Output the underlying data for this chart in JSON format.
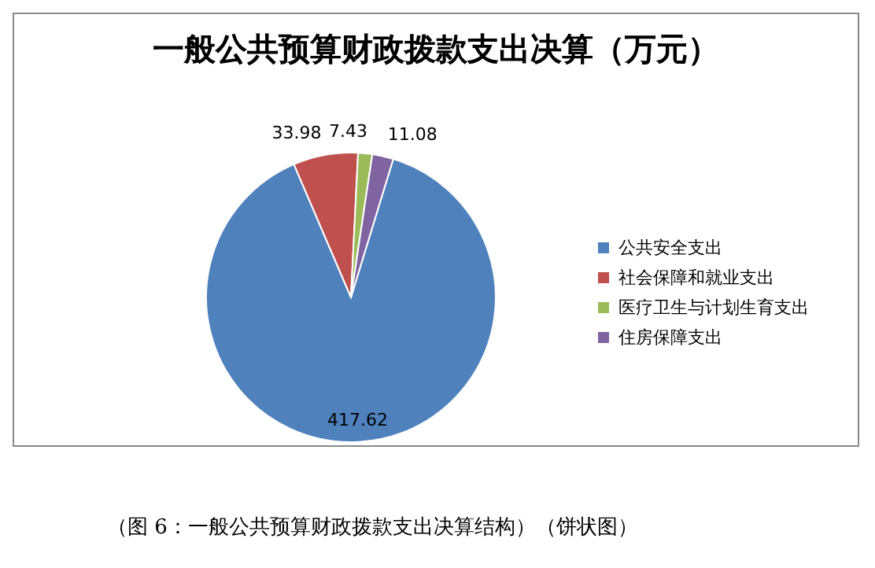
{
  "chart_data": {
    "type": "pie",
    "title": "一般公共预算财政拨款支出决算（万元）",
    "categories": [
      "公共安全支出",
      "社会保障和就业支出",
      "医疗卫生与计划生育支出",
      "住房保障支出"
    ],
    "values": [
      417.62,
      33.98,
      7.43,
      11.08
    ],
    "colors": [
      "#4f81bd",
      "#c0504d",
      "#9bbb59",
      "#8064a2"
    ],
    "data_labels": true,
    "legend": "right",
    "annotations": [
      "（图 6：一般公共预算财政拨款支出决算结构）（饼状图）"
    ]
  }
}
